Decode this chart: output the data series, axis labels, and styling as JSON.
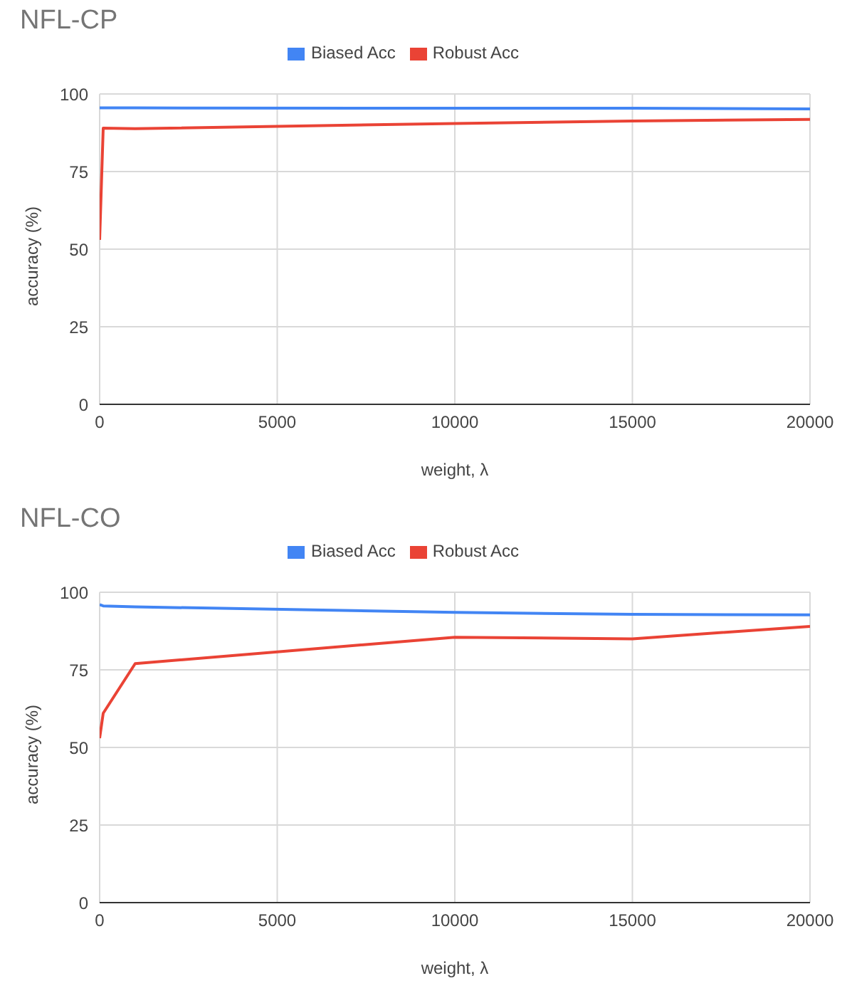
{
  "chart_data": [
    {
      "type": "line",
      "title": "NFL-CP",
      "xlabel": "weight, λ",
      "ylabel": "accuracy (%)",
      "x": [
        0,
        100,
        1000,
        10000,
        15000,
        20000
      ],
      "series": [
        {
          "name": "Biased Acc",
          "color": "#4285f4",
          "values": [
            95.5,
            95.5,
            95.5,
            95.4,
            95.4,
            95.2
          ]
        },
        {
          "name": "Robust Acc",
          "color": "#ea4335",
          "values": [
            53,
            89,
            88.8,
            90.5,
            91.3,
            91.8
          ]
        }
      ],
      "xlim": [
        0,
        20000
      ],
      "xticks": [
        0,
        5000,
        10000,
        15000,
        20000
      ],
      "ylim": [
        0,
        100
      ],
      "yticks": [
        0,
        25,
        50,
        75,
        100
      ],
      "grid": true,
      "legend": "top",
      "marker": "none",
      "line_style": "solid"
    },
    {
      "type": "line",
      "title": "NFL-CO",
      "xlabel": "weight, λ",
      "ylabel": "accuracy (%)",
      "x": [
        0,
        100,
        1000,
        10000,
        15000,
        20000
      ],
      "series": [
        {
          "name": "Biased Acc",
          "color": "#4285f4",
          "values": [
            96,
            95.6,
            95.3,
            93.5,
            92.9,
            92.7
          ]
        },
        {
          "name": "Robust Acc",
          "color": "#ea4335",
          "values": [
            53,
            61,
            77,
            85.5,
            85,
            89
          ]
        }
      ],
      "xlim": [
        0,
        20000
      ],
      "xticks": [
        0,
        5000,
        10000,
        15000,
        20000
      ],
      "ylim": [
        0,
        100
      ],
      "yticks": [
        0,
        25,
        50,
        75,
        100
      ],
      "grid": true,
      "legend": "top",
      "marker": "none",
      "line_style": "solid"
    }
  ]
}
